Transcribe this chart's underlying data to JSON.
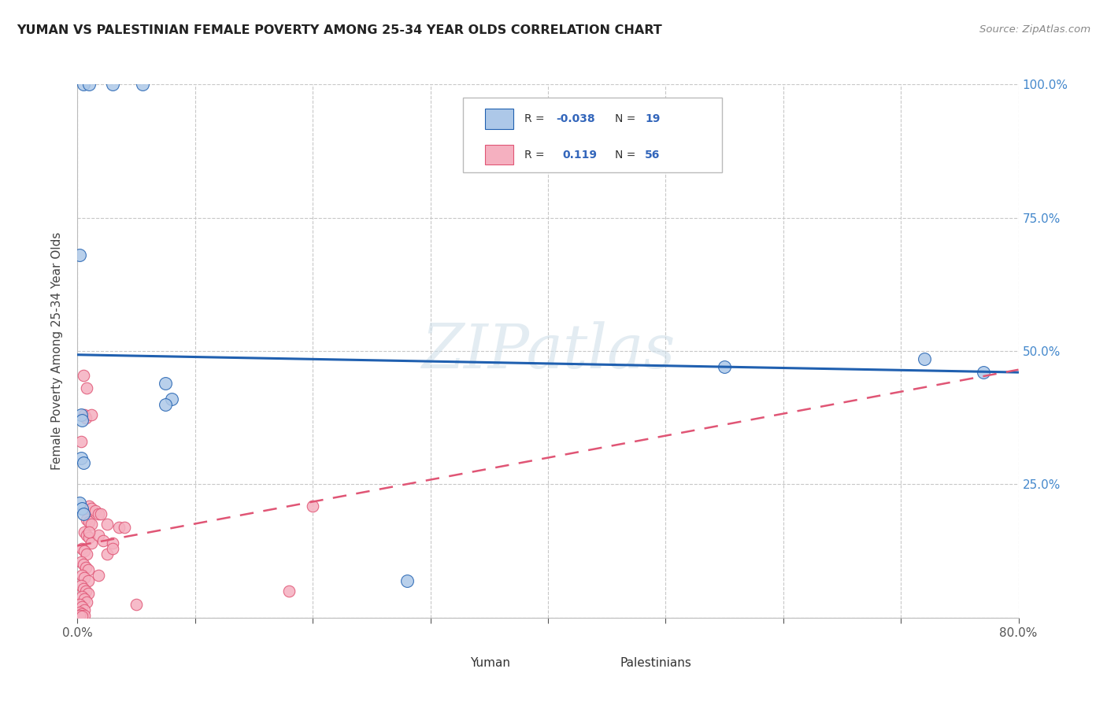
{
  "title": "YUMAN VS PALESTINIAN FEMALE POVERTY AMONG 25-34 YEAR OLDS CORRELATION CHART",
  "source": "Source: ZipAtlas.com",
  "ylabel": "Female Poverty Among 25-34 Year Olds",
  "xlim": [
    0.0,
    0.8
  ],
  "ylim": [
    0.0,
    1.0
  ],
  "xtick_positions": [
    0.0,
    0.1,
    0.2,
    0.3,
    0.4,
    0.5,
    0.6,
    0.7,
    0.8
  ],
  "xticklabels": [
    "0.0%",
    "",
    "",
    "",
    "",
    "",
    "",
    "",
    "80.0%"
  ],
  "ytick_positions": [
    0.0,
    0.25,
    0.5,
    0.75,
    1.0
  ],
  "yticklabels_right": [
    "",
    "25.0%",
    "50.0%",
    "75.0%",
    "100.0%"
  ],
  "legend_r_yuman": "-0.038",
  "legend_n_yuman": "19",
  "legend_r_palest": "0.119",
  "legend_n_palest": "56",
  "yuman_color": "#adc8e8",
  "palest_color": "#f5b0c0",
  "trendline_yuman_color": "#2060b0",
  "trendline_palest_color": "#e05575",
  "watermark": "ZIPatlas",
  "yuman_trend": [
    0.0,
    0.8,
    0.493,
    0.46
  ],
  "palest_trend": [
    0.0,
    0.8,
    0.135,
    0.465
  ],
  "yuman_points": [
    [
      0.005,
      1.0
    ],
    [
      0.01,
      1.0
    ],
    [
      0.03,
      1.0
    ],
    [
      0.055,
      1.0
    ],
    [
      0.002,
      0.68
    ],
    [
      0.075,
      0.44
    ],
    [
      0.08,
      0.41
    ],
    [
      0.075,
      0.4
    ],
    [
      0.003,
      0.38
    ],
    [
      0.004,
      0.37
    ],
    [
      0.003,
      0.3
    ],
    [
      0.005,
      0.29
    ],
    [
      0.002,
      0.215
    ],
    [
      0.004,
      0.205
    ],
    [
      0.005,
      0.195
    ],
    [
      0.55,
      0.47
    ],
    [
      0.72,
      0.485
    ],
    [
      0.77,
      0.46
    ],
    [
      0.28,
      0.07
    ]
  ],
  "palest_points": [
    [
      0.005,
      0.455
    ],
    [
      0.008,
      0.43
    ],
    [
      0.006,
      0.38
    ],
    [
      0.007,
      0.375
    ],
    [
      0.003,
      0.33
    ],
    [
      0.01,
      0.21
    ],
    [
      0.012,
      0.205
    ],
    [
      0.015,
      0.2
    ],
    [
      0.018,
      0.195
    ],
    [
      0.008,
      0.185
    ],
    [
      0.01,
      0.18
    ],
    [
      0.012,
      0.175
    ],
    [
      0.006,
      0.16
    ],
    [
      0.008,
      0.155
    ],
    [
      0.01,
      0.15
    ],
    [
      0.012,
      0.14
    ],
    [
      0.004,
      0.13
    ],
    [
      0.006,
      0.125
    ],
    [
      0.008,
      0.12
    ],
    [
      0.003,
      0.105
    ],
    [
      0.005,
      0.1
    ],
    [
      0.007,
      0.095
    ],
    [
      0.009,
      0.09
    ],
    [
      0.004,
      0.08
    ],
    [
      0.006,
      0.075
    ],
    [
      0.009,
      0.07
    ],
    [
      0.003,
      0.06
    ],
    [
      0.005,
      0.055
    ],
    [
      0.007,
      0.05
    ],
    [
      0.009,
      0.045
    ],
    [
      0.004,
      0.04
    ],
    [
      0.006,
      0.035
    ],
    [
      0.008,
      0.03
    ],
    [
      0.002,
      0.025
    ],
    [
      0.004,
      0.02
    ],
    [
      0.006,
      0.015
    ],
    [
      0.002,
      0.01
    ],
    [
      0.004,
      0.008
    ],
    [
      0.006,
      0.005
    ],
    [
      0.002,
      0.004
    ],
    [
      0.004,
      0.003
    ],
    [
      0.02,
      0.195
    ],
    [
      0.025,
      0.175
    ],
    [
      0.018,
      0.155
    ],
    [
      0.022,
      0.145
    ],
    [
      0.03,
      0.14
    ],
    [
      0.035,
      0.17
    ],
    [
      0.05,
      0.025
    ],
    [
      0.025,
      0.12
    ],
    [
      0.03,
      0.13
    ],
    [
      0.04,
      0.17
    ],
    [
      0.012,
      0.38
    ],
    [
      0.01,
      0.16
    ],
    [
      0.18,
      0.05
    ],
    [
      0.2,
      0.21
    ],
    [
      0.018,
      0.08
    ]
  ]
}
